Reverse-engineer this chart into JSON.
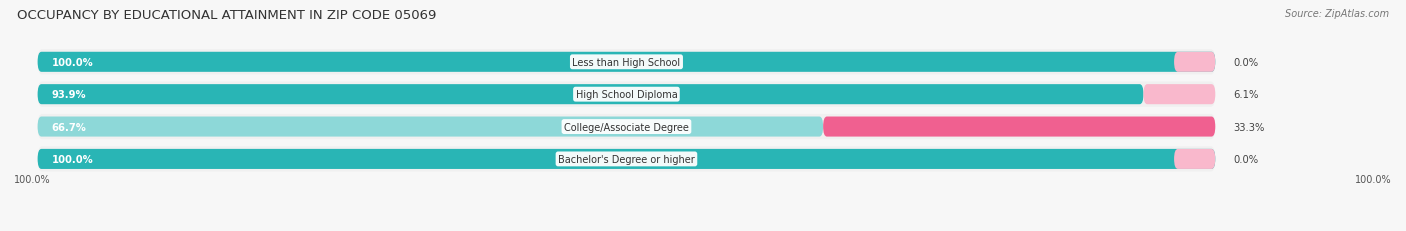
{
  "title": "OCCUPANCY BY EDUCATIONAL ATTAINMENT IN ZIP CODE 05069",
  "source": "Source: ZipAtlas.com",
  "categories": [
    "Less than High School",
    "High School Diploma",
    "College/Associate Degree",
    "Bachelor's Degree or higher"
  ],
  "owner_values": [
    100.0,
    93.9,
    66.7,
    100.0
  ],
  "renter_values": [
    0.0,
    6.1,
    33.3,
    0.0
  ],
  "owner_color_full": "#29b5b5",
  "owner_color_light": "#8dd8d8",
  "renter_color_full": "#f06090",
  "renter_color_light": "#f9b8cc",
  "bar_bg_color": "#e0e0e0",
  "row_bg_color": "#f0f0f0",
  "background_color": "#f7f7f7",
  "title_fontsize": 9.5,
  "label_fontsize": 7.2,
  "cat_fontsize": 7.0,
  "tick_fontsize": 7,
  "legend_fontsize": 7.5,
  "source_fontsize": 7
}
